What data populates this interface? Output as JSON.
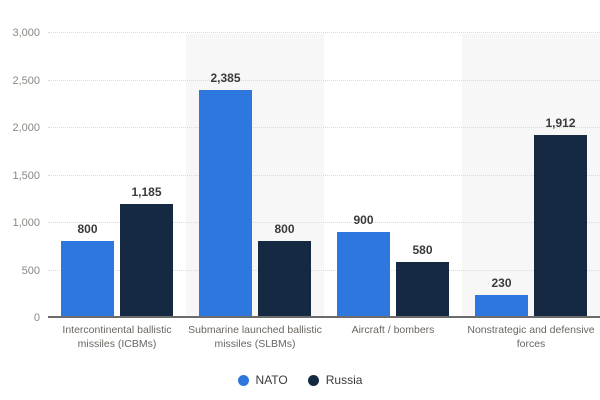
{
  "chart_data": {
    "type": "bar",
    "title": "",
    "categories": [
      "Intercontinental ballistic missiles (ICBMs)",
      "Submarine launched ballistic missiles (SLBMs)",
      "Aircraft / bombers",
      "Nonstrategic and defensive forces"
    ],
    "series": [
      {
        "name": "NATO",
        "color": "#2e77de",
        "values": [
          800,
          2385,
          900,
          230
        ]
      },
      {
        "name": "Russia",
        "color": "#152a42",
        "values": [
          1185,
          800,
          580,
          1912
        ]
      }
    ],
    "value_labels": [
      [
        "800",
        "2,385",
        "900",
        "230"
      ],
      [
        "1,185",
        "800",
        "580",
        "1,912"
      ]
    ],
    "yticks": [
      "0",
      "500",
      "1,000",
      "1,500",
      "2,000",
      "2,500",
      "3,000"
    ],
    "ylim": [
      0,
      3000
    ],
    "grid": "horizontal-dotted",
    "legend_position": "bottom",
    "colors": {
      "plot_band_alt": "#f7f7f7",
      "gridline": "#dcdad7",
      "axis_line": "#6b6b6b",
      "tick_label": "#8c8781",
      "value_label": "#3a3a3a",
      "category_label": "#6b6661"
    }
  }
}
